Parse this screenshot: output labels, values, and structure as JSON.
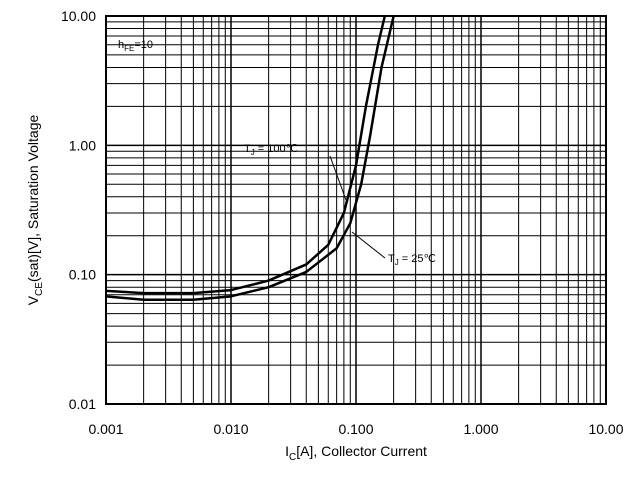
{
  "chart_data": {
    "type": "line",
    "x_label": {
      "main": "I",
      "sub": "C",
      "rest": "[A], Collector Current"
    },
    "y_label": {
      "main": "V",
      "sub": "CE",
      "rest": "(sat)[V], Saturation Voltage"
    },
    "annotations": [
      {
        "main": "h",
        "sub": "FE",
        "rest": "=10"
      },
      {
        "main": "T",
        "sub": "J",
        "rest": " = 100℃"
      },
      {
        "main": "T",
        "sub": "J",
        "rest": " = 25℃"
      }
    ],
    "xscale": "log",
    "yscale": "log",
    "grid": true,
    "minor_grid": true,
    "xlim": [
      0.001,
      10
    ],
    "ylim": [
      0.01,
      10
    ],
    "xticks": [
      {
        "value": 0.001,
        "label": "0.001"
      },
      {
        "value": 0.01,
        "label": "0.010"
      },
      {
        "value": 0.1,
        "label": "0.100"
      },
      {
        "value": 1,
        "label": "1.000"
      },
      {
        "value": 10,
        "label": "10.00"
      }
    ],
    "yticks": [
      {
        "value": 0.01,
        "label": "0.01"
      },
      {
        "value": 0.1,
        "label": "0.10"
      },
      {
        "value": 1,
        "label": "1.00"
      },
      {
        "value": 10,
        "label": "10.00"
      }
    ],
    "series": [
      {
        "name": "TJ = 100℃",
        "color": "#000000",
        "x": [
          0.001,
          0.002,
          0.005,
          0.01,
          0.02,
          0.04,
          0.06,
          0.08,
          0.1,
          0.12,
          0.15,
          0.17
        ],
        "values": [
          0.075,
          0.072,
          0.072,
          0.076,
          0.09,
          0.12,
          0.17,
          0.3,
          0.7,
          2,
          6,
          10
        ]
      },
      {
        "name": "TJ = 25℃",
        "color": "#000000",
        "x": [
          0.001,
          0.002,
          0.005,
          0.01,
          0.02,
          0.04,
          0.07,
          0.09,
          0.11,
          0.13,
          0.16,
          0.2
        ],
        "values": [
          0.068,
          0.064,
          0.064,
          0.068,
          0.08,
          0.105,
          0.16,
          0.25,
          0.5,
          1.2,
          4,
          10
        ]
      }
    ]
  }
}
